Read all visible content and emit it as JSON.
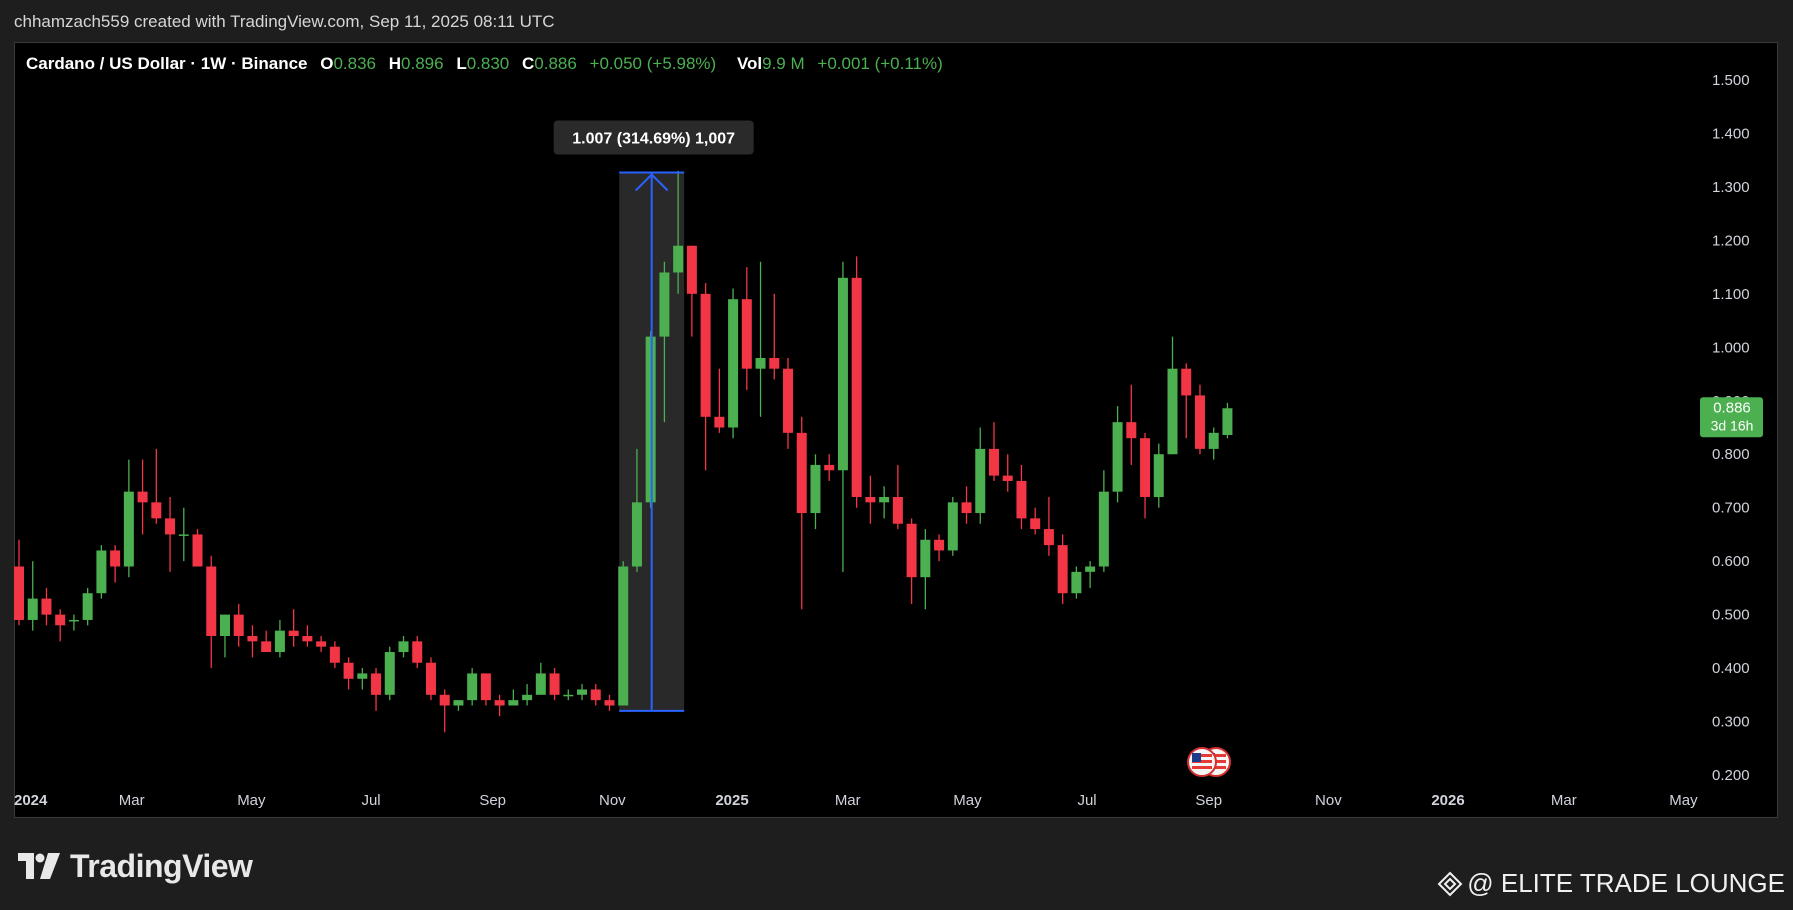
{
  "header": {
    "byline": "chhamzach559 created with TradingView.com, Sep 11, 2025 08:11 UTC"
  },
  "legend": {
    "symbol": "Cardano / US Dollar · 1W · Binance",
    "open_label": "O",
    "open": "0.836",
    "high_label": "H",
    "high": "0.896",
    "low_label": "L",
    "low": "0.830",
    "close_label": "C",
    "close": "0.886",
    "change": "+0.050 (+5.98%)",
    "vol_label": "Vol",
    "vol": "9.9 M",
    "vol_change": "+0.001 (+0.11%)"
  },
  "measure": {
    "label": "1.007 (314.69%) 1,007",
    "from_price": 0.32,
    "to_price": 1.327
  },
  "price_tag": {
    "price": "0.886",
    "countdown": "3d 16h",
    "color": "#4caf50"
  },
  "footer": {
    "brand": "TradingView",
    "watermark": "@ ELITE TRADE LOUNGE"
  },
  "chart_data": {
    "type": "candlestick",
    "ylim": [
      0.2,
      1.55
    ],
    "y_ticks": [
      0.2,
      0.3,
      0.4,
      0.5,
      0.6,
      0.7,
      0.8,
      0.9,
      1.0,
      1.1,
      1.2,
      1.3,
      1.4,
      1.5
    ],
    "y_tick_labels": [
      "0.200",
      "0.300",
      "0.400",
      "0.500",
      "0.600",
      "0.700",
      "0.800",
      "0.900",
      "1.000",
      "1.100",
      "1.200",
      "1.300",
      "1.400",
      "1.500"
    ],
    "x_ticks": [
      {
        "label": "2024",
        "date": "2024-01-01",
        "bold": true
      },
      {
        "label": "Mar",
        "date": "2024-03-01",
        "bold": false
      },
      {
        "label": "May",
        "date": "2024-05-01",
        "bold": false
      },
      {
        "label": "Jul",
        "date": "2024-07-01",
        "bold": false
      },
      {
        "label": "Sep",
        "date": "2024-09-01",
        "bold": false
      },
      {
        "label": "Nov",
        "date": "2024-11-01",
        "bold": false
      },
      {
        "label": "2025",
        "date": "2025-01-01",
        "bold": true
      },
      {
        "label": "Mar",
        "date": "2025-03-01",
        "bold": false
      },
      {
        "label": "May",
        "date": "2025-05-01",
        "bold": false
      },
      {
        "label": "Jul",
        "date": "2025-07-01",
        "bold": false
      },
      {
        "label": "Sep",
        "date": "2025-09-01",
        "bold": false
      },
      {
        "label": "Nov",
        "date": "2025-11-01",
        "bold": false
      },
      {
        "label": "2026",
        "date": "2026-01-01",
        "bold": true
      },
      {
        "label": "Mar",
        "date": "2026-03-01",
        "bold": false
      },
      {
        "label": "May",
        "date": "2026-05-01",
        "bold": false
      }
    ],
    "up_color": "#4caf50",
    "down_color": "#f23645",
    "candles": [
      {
        "date": "2024-01-01",
        "o": 0.59,
        "h": 0.64,
        "l": 0.48,
        "c": 0.49
      },
      {
        "date": "2024-01-08",
        "o": 0.49,
        "h": 0.6,
        "l": 0.47,
        "c": 0.53
      },
      {
        "date": "2024-01-15",
        "o": 0.53,
        "h": 0.55,
        "l": 0.48,
        "c": 0.5
      },
      {
        "date": "2024-01-22",
        "o": 0.5,
        "h": 0.51,
        "l": 0.45,
        "c": 0.48
      },
      {
        "date": "2024-01-29",
        "o": 0.49,
        "h": 0.5,
        "l": 0.47,
        "c": 0.49
      },
      {
        "date": "2024-02-05",
        "o": 0.49,
        "h": 0.55,
        "l": 0.48,
        "c": 0.54
      },
      {
        "date": "2024-02-12",
        "o": 0.54,
        "h": 0.63,
        "l": 0.53,
        "c": 0.62
      },
      {
        "date": "2024-02-19",
        "o": 0.62,
        "h": 0.63,
        "l": 0.56,
        "c": 0.59
      },
      {
        "date": "2024-02-26",
        "o": 0.59,
        "h": 0.79,
        "l": 0.57,
        "c": 0.73
      },
      {
        "date": "2024-03-04",
        "o": 0.73,
        "h": 0.79,
        "l": 0.65,
        "c": 0.71
      },
      {
        "date": "2024-03-11",
        "o": 0.71,
        "h": 0.81,
        "l": 0.67,
        "c": 0.68
      },
      {
        "date": "2024-03-18",
        "o": 0.68,
        "h": 0.72,
        "l": 0.58,
        "c": 0.65
      },
      {
        "date": "2024-03-25",
        "o": 0.65,
        "h": 0.7,
        "l": 0.6,
        "c": 0.65
      },
      {
        "date": "2024-04-01",
        "o": 0.65,
        "h": 0.66,
        "l": 0.59,
        "c": 0.59
      },
      {
        "date": "2024-04-08",
        "o": 0.59,
        "h": 0.61,
        "l": 0.4,
        "c": 0.46
      },
      {
        "date": "2024-04-15",
        "o": 0.46,
        "h": 0.5,
        "l": 0.42,
        "c": 0.5
      },
      {
        "date": "2024-04-22",
        "o": 0.5,
        "h": 0.52,
        "l": 0.44,
        "c": 0.46
      },
      {
        "date": "2024-04-29",
        "o": 0.46,
        "h": 0.48,
        "l": 0.42,
        "c": 0.45
      },
      {
        "date": "2024-05-06",
        "o": 0.45,
        "h": 0.47,
        "l": 0.43,
        "c": 0.43
      },
      {
        "date": "2024-05-13",
        "o": 0.43,
        "h": 0.49,
        "l": 0.42,
        "c": 0.47
      },
      {
        "date": "2024-05-20",
        "o": 0.47,
        "h": 0.51,
        "l": 0.44,
        "c": 0.46
      },
      {
        "date": "2024-05-27",
        "o": 0.46,
        "h": 0.48,
        "l": 0.44,
        "c": 0.45
      },
      {
        "date": "2024-06-03",
        "o": 0.45,
        "h": 0.46,
        "l": 0.43,
        "c": 0.44
      },
      {
        "date": "2024-06-10",
        "o": 0.44,
        "h": 0.45,
        "l": 0.4,
        "c": 0.41
      },
      {
        "date": "2024-06-17",
        "o": 0.41,
        "h": 0.42,
        "l": 0.36,
        "c": 0.38
      },
      {
        "date": "2024-06-24",
        "o": 0.38,
        "h": 0.4,
        "l": 0.36,
        "c": 0.39
      },
      {
        "date": "2024-07-01",
        "o": 0.39,
        "h": 0.4,
        "l": 0.32,
        "c": 0.35
      },
      {
        "date": "2024-07-08",
        "o": 0.35,
        "h": 0.44,
        "l": 0.34,
        "c": 0.43
      },
      {
        "date": "2024-07-15",
        "o": 0.43,
        "h": 0.46,
        "l": 0.42,
        "c": 0.45
      },
      {
        "date": "2024-07-22",
        "o": 0.45,
        "h": 0.46,
        "l": 0.4,
        "c": 0.41
      },
      {
        "date": "2024-07-29",
        "o": 0.41,
        "h": 0.42,
        "l": 0.34,
        "c": 0.35
      },
      {
        "date": "2024-08-05",
        "o": 0.35,
        "h": 0.36,
        "l": 0.28,
        "c": 0.33
      },
      {
        "date": "2024-08-12",
        "o": 0.33,
        "h": 0.34,
        "l": 0.32,
        "c": 0.34
      },
      {
        "date": "2024-08-19",
        "o": 0.34,
        "h": 0.4,
        "l": 0.33,
        "c": 0.39
      },
      {
        "date": "2024-08-26",
        "o": 0.39,
        "h": 0.39,
        "l": 0.33,
        "c": 0.34
      },
      {
        "date": "2024-09-02",
        "o": 0.34,
        "h": 0.35,
        "l": 0.31,
        "c": 0.33
      },
      {
        "date": "2024-09-09",
        "o": 0.33,
        "h": 0.36,
        "l": 0.33,
        "c": 0.34
      },
      {
        "date": "2024-09-16",
        "o": 0.34,
        "h": 0.37,
        "l": 0.33,
        "c": 0.35
      },
      {
        "date": "2024-09-23",
        "o": 0.35,
        "h": 0.41,
        "l": 0.35,
        "c": 0.39
      },
      {
        "date": "2024-09-30",
        "o": 0.39,
        "h": 0.4,
        "l": 0.34,
        "c": 0.35
      },
      {
        "date": "2024-10-07",
        "o": 0.35,
        "h": 0.36,
        "l": 0.34,
        "c": 0.35
      },
      {
        "date": "2024-10-14",
        "o": 0.35,
        "h": 0.37,
        "l": 0.34,
        "c": 0.36
      },
      {
        "date": "2024-10-21",
        "o": 0.36,
        "h": 0.37,
        "l": 0.33,
        "c": 0.34
      },
      {
        "date": "2024-10-28",
        "o": 0.34,
        "h": 0.35,
        "l": 0.32,
        "c": 0.33
      },
      {
        "date": "2024-11-04",
        "o": 0.33,
        "h": 0.6,
        "l": 0.33,
        "c": 0.59
      },
      {
        "date": "2024-11-11",
        "o": 0.59,
        "h": 0.81,
        "l": 0.58,
        "c": 0.71
      },
      {
        "date": "2024-11-18",
        "o": 0.71,
        "h": 1.03,
        "l": 0.7,
        "c": 1.02
      },
      {
        "date": "2024-11-25",
        "o": 1.02,
        "h": 1.16,
        "l": 0.86,
        "c": 1.14
      },
      {
        "date": "2024-12-02",
        "o": 1.14,
        "h": 1.33,
        "l": 1.1,
        "c": 1.19
      },
      {
        "date": "2024-12-09",
        "o": 1.19,
        "h": 1.19,
        "l": 1.02,
        "c": 1.1
      },
      {
        "date": "2024-12-16",
        "o": 1.1,
        "h": 1.12,
        "l": 0.77,
        "c": 0.87
      },
      {
        "date": "2024-12-23",
        "o": 0.87,
        "h": 0.96,
        "l": 0.84,
        "c": 0.85
      },
      {
        "date": "2024-12-30",
        "o": 0.85,
        "h": 1.11,
        "l": 0.83,
        "c": 1.09
      },
      {
        "date": "2025-01-06",
        "o": 1.09,
        "h": 1.15,
        "l": 0.92,
        "c": 0.96
      },
      {
        "date": "2025-01-13",
        "o": 0.96,
        "h": 1.16,
        "l": 0.87,
        "c": 0.98
      },
      {
        "date": "2025-01-20",
        "o": 0.98,
        "h": 1.1,
        "l": 0.94,
        "c": 0.96
      },
      {
        "date": "2025-01-27",
        "o": 0.96,
        "h": 0.98,
        "l": 0.81,
        "c": 0.84
      },
      {
        "date": "2025-02-03",
        "o": 0.84,
        "h": 0.87,
        "l": 0.51,
        "c": 0.69
      },
      {
        "date": "2025-02-10",
        "o": 0.69,
        "h": 0.8,
        "l": 0.66,
        "c": 0.78
      },
      {
        "date": "2025-02-17",
        "o": 0.78,
        "h": 0.8,
        "l": 0.75,
        "c": 0.77
      },
      {
        "date": "2025-02-24",
        "o": 0.77,
        "h": 1.16,
        "l": 0.58,
        "c": 1.13
      },
      {
        "date": "2025-03-03",
        "o": 1.13,
        "h": 1.17,
        "l": 0.7,
        "c": 0.72
      },
      {
        "date": "2025-03-10",
        "o": 0.72,
        "h": 0.76,
        "l": 0.67,
        "c": 0.71
      },
      {
        "date": "2025-03-17",
        "o": 0.71,
        "h": 0.74,
        "l": 0.68,
        "c": 0.72
      },
      {
        "date": "2025-03-24",
        "o": 0.72,
        "h": 0.78,
        "l": 0.66,
        "c": 0.67
      },
      {
        "date": "2025-03-31",
        "o": 0.67,
        "h": 0.68,
        "l": 0.52,
        "c": 0.57
      },
      {
        "date": "2025-04-07",
        "o": 0.57,
        "h": 0.66,
        "l": 0.51,
        "c": 0.64
      },
      {
        "date": "2025-04-14",
        "o": 0.64,
        "h": 0.65,
        "l": 0.6,
        "c": 0.62
      },
      {
        "date": "2025-04-21",
        "o": 0.62,
        "h": 0.72,
        "l": 0.61,
        "c": 0.71
      },
      {
        "date": "2025-04-28",
        "o": 0.71,
        "h": 0.74,
        "l": 0.67,
        "c": 0.69
      },
      {
        "date": "2025-05-05",
        "o": 0.69,
        "h": 0.85,
        "l": 0.67,
        "c": 0.81
      },
      {
        "date": "2025-05-12",
        "o": 0.81,
        "h": 0.86,
        "l": 0.75,
        "c": 0.76
      },
      {
        "date": "2025-05-19",
        "o": 0.76,
        "h": 0.8,
        "l": 0.73,
        "c": 0.75
      },
      {
        "date": "2025-05-26",
        "o": 0.75,
        "h": 0.78,
        "l": 0.66,
        "c": 0.68
      },
      {
        "date": "2025-06-02",
        "o": 0.68,
        "h": 0.7,
        "l": 0.65,
        "c": 0.66
      },
      {
        "date": "2025-06-09",
        "o": 0.66,
        "h": 0.72,
        "l": 0.61,
        "c": 0.63
      },
      {
        "date": "2025-06-16",
        "o": 0.63,
        "h": 0.65,
        "l": 0.52,
        "c": 0.54
      },
      {
        "date": "2025-06-23",
        "o": 0.54,
        "h": 0.59,
        "l": 0.53,
        "c": 0.58
      },
      {
        "date": "2025-06-30",
        "o": 0.58,
        "h": 0.6,
        "l": 0.55,
        "c": 0.59
      },
      {
        "date": "2025-07-07",
        "o": 0.59,
        "h": 0.77,
        "l": 0.58,
        "c": 0.73
      },
      {
        "date": "2025-07-14",
        "o": 0.73,
        "h": 0.89,
        "l": 0.71,
        "c": 0.86
      },
      {
        "date": "2025-07-21",
        "o": 0.86,
        "h": 0.93,
        "l": 0.78,
        "c": 0.83
      },
      {
        "date": "2025-07-28",
        "o": 0.83,
        "h": 0.84,
        "l": 0.68,
        "c": 0.72
      },
      {
        "date": "2025-08-04",
        "o": 0.72,
        "h": 0.82,
        "l": 0.7,
        "c": 0.8
      },
      {
        "date": "2025-08-11",
        "o": 0.8,
        "h": 1.02,
        "l": 0.8,
        "c": 0.96
      },
      {
        "date": "2025-08-18",
        "o": 0.96,
        "h": 0.97,
        "l": 0.83,
        "c": 0.91
      },
      {
        "date": "2025-08-25",
        "o": 0.91,
        "h": 0.93,
        "l": 0.8,
        "c": 0.81
      },
      {
        "date": "2025-09-01",
        "o": 0.81,
        "h": 0.85,
        "l": 0.79,
        "c": 0.84
      },
      {
        "date": "2025-09-08",
        "o": 0.836,
        "h": 0.896,
        "l": 0.83,
        "c": 0.886
      }
    ]
  }
}
